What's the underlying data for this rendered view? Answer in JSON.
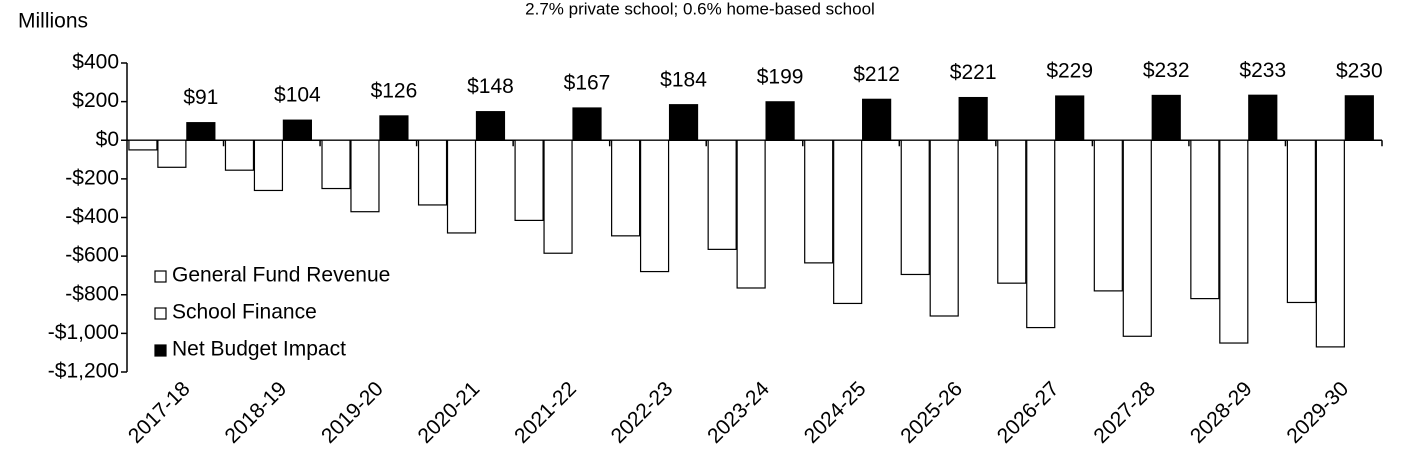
{
  "chart_data": {
    "type": "bar",
    "subtitle": "2.7% private school; 0.6% home-based school",
    "ylabel": "Millions",
    "categories": [
      "2017-18",
      "2018-19",
      "2019-20",
      "2020-21",
      "2021-22",
      "2022-23",
      "2023-24",
      "2024-25",
      "2025-26",
      "2026-27",
      "2027-28",
      "2028-29",
      "2029-30"
    ],
    "series": [
      {
        "name": "General Fund Revenue",
        "color": "#ffffff",
        "values": [
          -50,
          -155,
          -250,
          -335,
          -415,
          -495,
          -565,
          -635,
          -695,
          -740,
          -780,
          -820,
          -840
        ]
      },
      {
        "name": "School Finance",
        "color": "#ffffff",
        "values": [
          -140,
          -260,
          -370,
          -480,
          -585,
          -680,
          -765,
          -845,
          -910,
          -970,
          -1015,
          -1050,
          -1070
        ]
      },
      {
        "name": "Net Budget Impact",
        "color": "#000000",
        "values": [
          91,
          104,
          126,
          148,
          167,
          184,
          199,
          212,
          221,
          229,
          232,
          233,
          230
        ],
        "value_labels": [
          "$91",
          "$104",
          "$126",
          "$148",
          "$167",
          "$184",
          "$199",
          "$212",
          "$221",
          "$229",
          "$232",
          "$233",
          "$230"
        ]
      }
    ],
    "ylim": [
      -1200,
      400
    ],
    "yticks": [
      {
        "value": 400,
        "label": "$400"
      },
      {
        "value": 200,
        "label": "$200"
      },
      {
        "value": 0,
        "label": "$0"
      },
      {
        "value": -200,
        "label": "-$200"
      },
      {
        "value": -400,
        "label": "-$400"
      },
      {
        "value": -600,
        "label": "-$600"
      },
      {
        "value": -800,
        "label": "-$800"
      },
      {
        "value": -1000,
        "label": "-$1,000"
      },
      {
        "value": -1200,
        "label": "-$1,200"
      }
    ],
    "legend": "lower left"
  }
}
